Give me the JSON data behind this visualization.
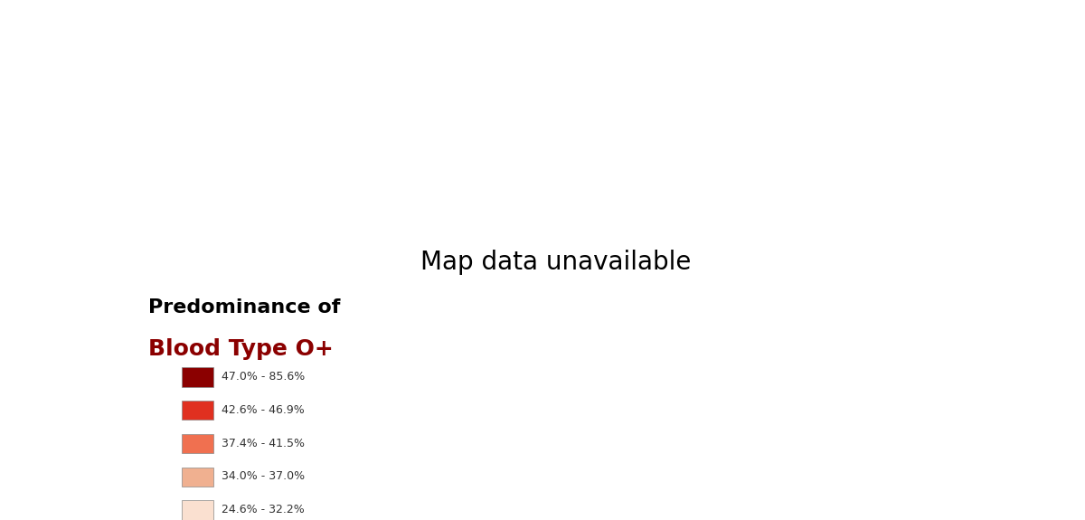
{
  "title_line1": "Predominance of",
  "title_line2": "Blood Type O+",
  "title_line1_color": "#000000",
  "title_line2_color": "#8B0000",
  "background_color": "#ffffff",
  "no_data_color": "#b0b0b0",
  "legend_labels": [
    "47.0% - 85.6%",
    "42.6% - 46.9%",
    "37.4% - 41.5%",
    "34.0% - 37.0%",
    "24.6% - 32.2%"
  ],
  "legend_colors": [
    "#8B0000",
    "#E03020",
    "#F07050",
    "#F0B090",
    "#FAE0D0"
  ],
  "country_colors": {
    "Mexico": "#8B0000",
    "Guatemala": "#8B0000",
    "Belize": "#8B0000",
    "Honduras": "#8B0000",
    "El Salvador": "#8B0000",
    "Nicaragua": "#8B0000",
    "Costa Rica": "#8B0000",
    "Panama": "#8B0000",
    "Colombia": "#8B0000",
    "Venezuela": "#8B0000",
    "Ecuador": "#8B0000",
    "Peru": "#8B0000",
    "Bolivia": "#8B0000",
    "Chile": "#8B0000",
    "Argentina": "#8B0000",
    "Paraguay": "#8B0000",
    "Uruguay": "#8B0000",
    "Brazil": "#8B0000",
    "China": "#8B0000",
    "Russia": "#8B0000",
    "Mongolia": "#8B0000",
    "South Korea": "#8B0000",
    "Japan": "#8B0000",
    "Nigeria": "#8B0000",
    "Dem. Rep. Congo": "#8B0000",
    "Angola": "#8B0000",
    "Cameroon": "#8B0000",
    "Gabon": "#8B0000",
    "Eq. Guinea": "#8B0000",
    "United States of America": "#E03020",
    "Canada": "#E03020",
    "Australia": "#E03020",
    "Iceland": "#E03020",
    "Ireland": "#E03020",
    "United Kingdom": "#E03020",
    "Ethiopia": "#E03020",
    "Kenya": "#E03020",
    "Tanzania": "#E03020",
    "Mozambique": "#E03020",
    "Madagascar": "#E03020",
    "Zambia": "#E03020",
    "Somalia": "#E03020",
    "Sudan": "#E03020",
    "S. Sudan": "#E03020",
    "Ghana": "#E03020",
    "Senegal": "#E03020",
    "Guinea": "#E03020",
    "Ivory Coast": "#E03020",
    "Mali": "#E03020",
    "Benin": "#E03020",
    "Togo": "#E03020",
    "Niger": "#E03020",
    "Burkina Faso": "#E03020",
    "Chad": "#E03020",
    "Central African Rep.": "#E03020",
    "Congo": "#E03020",
    "Uganda": "#E03020",
    "Rwanda": "#E03020",
    "Burundi": "#E03020",
    "Zimbabwe": "#E03020",
    "Malawi": "#E03020",
    "Egypt": "#E03020",
    "Libya": "#E03020",
    "Saudi Arabia": "#E03020",
    "Iraq": "#E03020",
    "Syria": "#E03020",
    "Yemen": "#E03020",
    "Thailand": "#E03020",
    "Vietnam": "#E03020",
    "Cambodia": "#E03020",
    "Myanmar": "#E03020",
    "Laos": "#E03020",
    "Philippines": "#E03020",
    "Indonesia": "#E03020",
    "Malaysia": "#E03020",
    "Norway": "#F07050",
    "Sweden": "#F07050",
    "Denmark": "#F07050",
    "Finland": "#F07050",
    "Estonia": "#F07050",
    "Latvia": "#F07050",
    "Lithuania": "#F07050",
    "Poland": "#F07050",
    "Germany": "#F07050",
    "Netherlands": "#F07050",
    "Belgium": "#F07050",
    "Luxembourg": "#F07050",
    "Switzerland": "#F07050",
    "Austria": "#F07050",
    "Czech Republic": "#F07050",
    "Slovakia": "#F07050",
    "Hungary": "#F07050",
    "Romania": "#F07050",
    "Bulgaria": "#F07050",
    "Serbia": "#F07050",
    "Croatia": "#F07050",
    "Bosnia and Herz.": "#F07050",
    "Slovenia": "#F07050",
    "Macedonia": "#F07050",
    "Montenegro": "#F07050",
    "Albania": "#F07050",
    "Greece": "#F07050",
    "Turkey": "#F07050",
    "Cyprus": "#F07050",
    "Portugal": "#F07050",
    "Spain": "#F07050",
    "France": "#F07050",
    "Italy": "#F07050",
    "New Zealand": "#F07050",
    "Iran": "#F07050",
    "Jordan": "#F07050",
    "Lebanon": "#F07050",
    "Israel": "#F07050",
    "Kuwait": "#F07050",
    "United Arab Emirates": "#F07050",
    "Qatar": "#F07050",
    "Oman": "#F07050",
    "Algeria": "#F07050",
    "Morocco": "#F07050",
    "Tunisia": "#F07050",
    "South Africa": "#F07050",
    "Namibia": "#F07050",
    "Botswana": "#F07050",
    "Swaziland": "#F07050",
    "Lesotho": "#F07050",
    "India": "#F0B090",
    "Pakistan": "#F0B090",
    "Bangladesh": "#F0B090",
    "Nepal": "#F0B090",
    "Sri Lanka": "#F0B090",
    "Afghanistan": "#F0B090",
    "Ukraine": "#F0B090",
    "Belarus": "#F0B090",
    "Moldova": "#F0B090",
    "Georgia": "#F0B090",
    "Armenia": "#F0B090",
    "Azerbaijan": "#F0B090",
    "Kazakhstan": "#F0B090",
    "Uzbekistan": "#F0B090",
    "Turkmenistan": "#F0B090",
    "Kyrgyzstan": "#F0B090",
    "Tajikistan": "#F0B090",
    "North Korea": "#FAE0D0"
  }
}
